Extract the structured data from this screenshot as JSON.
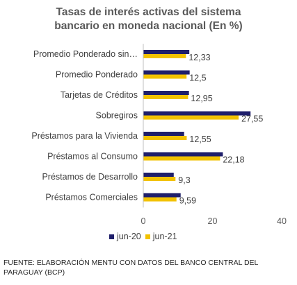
{
  "chart_data": {
    "type": "bar",
    "orientation": "horizontal",
    "title_lines": [
      "Tasas de interés activas del sistema",
      "bancario en moneda nacional (En %)"
    ],
    "categories": [
      "Promedio Ponderado sin…",
      "Promedio Ponderado",
      "Tarjetas de Créditos",
      "Sobregiros",
      "Préstamos para la Vivienda",
      "Préstamos al Consumo",
      "Préstamos de Desarrollo",
      "Préstamos Comerciales"
    ],
    "series": [
      {
        "name": "jun-20",
        "color": "#1f1f6b",
        "values": [
          13.3,
          13.4,
          13.2,
          31.0,
          11.8,
          23.0,
          8.8,
          10.8
        ]
      },
      {
        "name": "jun-21",
        "color": "#f2c200",
        "values": [
          12.33,
          12.5,
          12.95,
          27.55,
          12.55,
          22.18,
          9.3,
          9.59
        ]
      }
    ],
    "data_labels": [
      "12,33",
      "12,5",
      "12,95",
      "27,55",
      "12,55",
      "22,18",
      "9,3",
      "9,59"
    ],
    "xlim": [
      0,
      40
    ],
    "xticks": [
      0,
      20,
      40
    ],
    "xtick_labels": [
      "0",
      "20",
      "40"
    ],
    "legend_position": "bottom-center",
    "grid": false
  },
  "source_text": "FUENTE: ELABORACIÓN MENTU CON DATOS DEL BANCO CENTRAL DEL PARAGUAY (BCP)"
}
